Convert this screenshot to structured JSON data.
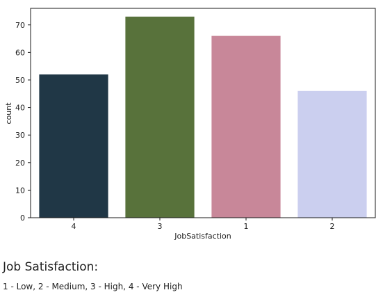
{
  "chart_data": {
    "type": "bar",
    "categories": [
      "4",
      "3",
      "1",
      "2"
    ],
    "values": [
      52,
      73,
      66,
      46
    ],
    "colors": [
      "#203746",
      "#58723b",
      "#c88799",
      "#cbcfef"
    ],
    "xlabel": "JobSatisfaction",
    "ylabel": "count",
    "ylim": [
      0,
      76
    ],
    "yticks": [
      0,
      10,
      20,
      30,
      40,
      50,
      60,
      70
    ],
    "grid": false
  },
  "text": {
    "heading": "Job Satisfaction:",
    "legend": "1 - Low, 2 - Medium, 3 - High, 4 - Very High"
  }
}
